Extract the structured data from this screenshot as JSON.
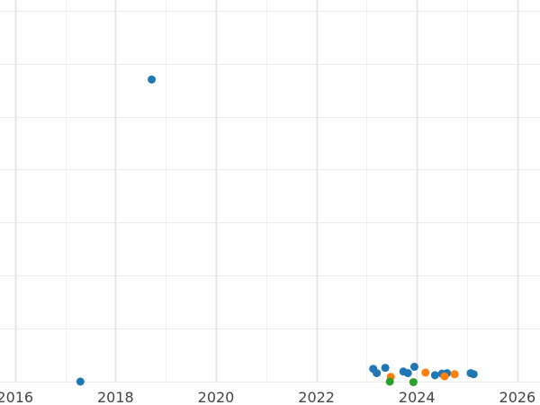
{
  "chart_data": {
    "type": "scatter",
    "title": "",
    "xlabel": "",
    "ylabel": "",
    "xlim": [
      2015.7,
      2026.45
    ],
    "ylim": [
      0,
      7.2
    ],
    "x_ticks": [
      2016,
      2018,
      2020,
      2022,
      2024,
      2026
    ],
    "x_tick_labels": [
      "2016",
      "2018",
      "2020",
      "2022",
      "2024",
      "2026"
    ],
    "y_gridlines": [
      0,
      1,
      2,
      3,
      4,
      5,
      6,
      7
    ],
    "grid": true,
    "legend": "none",
    "series": [
      {
        "color": "#1f77b4",
        "points": [
          {
            "x": 2017.3,
            "y": 0.0
          },
          {
            "x": 2018.72,
            "y": 5.7
          },
          {
            "x": 2023.13,
            "y": 0.24
          },
          {
            "x": 2023.2,
            "y": 0.16
          },
          {
            "x": 2023.37,
            "y": 0.26
          },
          {
            "x": 2023.73,
            "y": 0.19
          },
          {
            "x": 2023.82,
            "y": 0.16
          },
          {
            "x": 2023.95,
            "y": 0.28
          },
          {
            "x": 2024.36,
            "y": 0.12
          },
          {
            "x": 2024.5,
            "y": 0.15
          },
          {
            "x": 2024.6,
            "y": 0.16
          },
          {
            "x": 2025.07,
            "y": 0.16
          },
          {
            "x": 2025.13,
            "y": 0.14
          }
        ]
      },
      {
        "color": "#ff7f0e",
        "points": [
          {
            "x": 2023.48,
            "y": 0.09
          },
          {
            "x": 2024.17,
            "y": 0.17
          },
          {
            "x": 2024.55,
            "y": 0.1
          },
          {
            "x": 2024.75,
            "y": 0.14
          }
        ]
      },
      {
        "color": "#2ca02c",
        "points": [
          {
            "x": 2023.46,
            "y": 0.0
          },
          {
            "x": 2023.93,
            "y": -0.01
          }
        ]
      }
    ]
  }
}
